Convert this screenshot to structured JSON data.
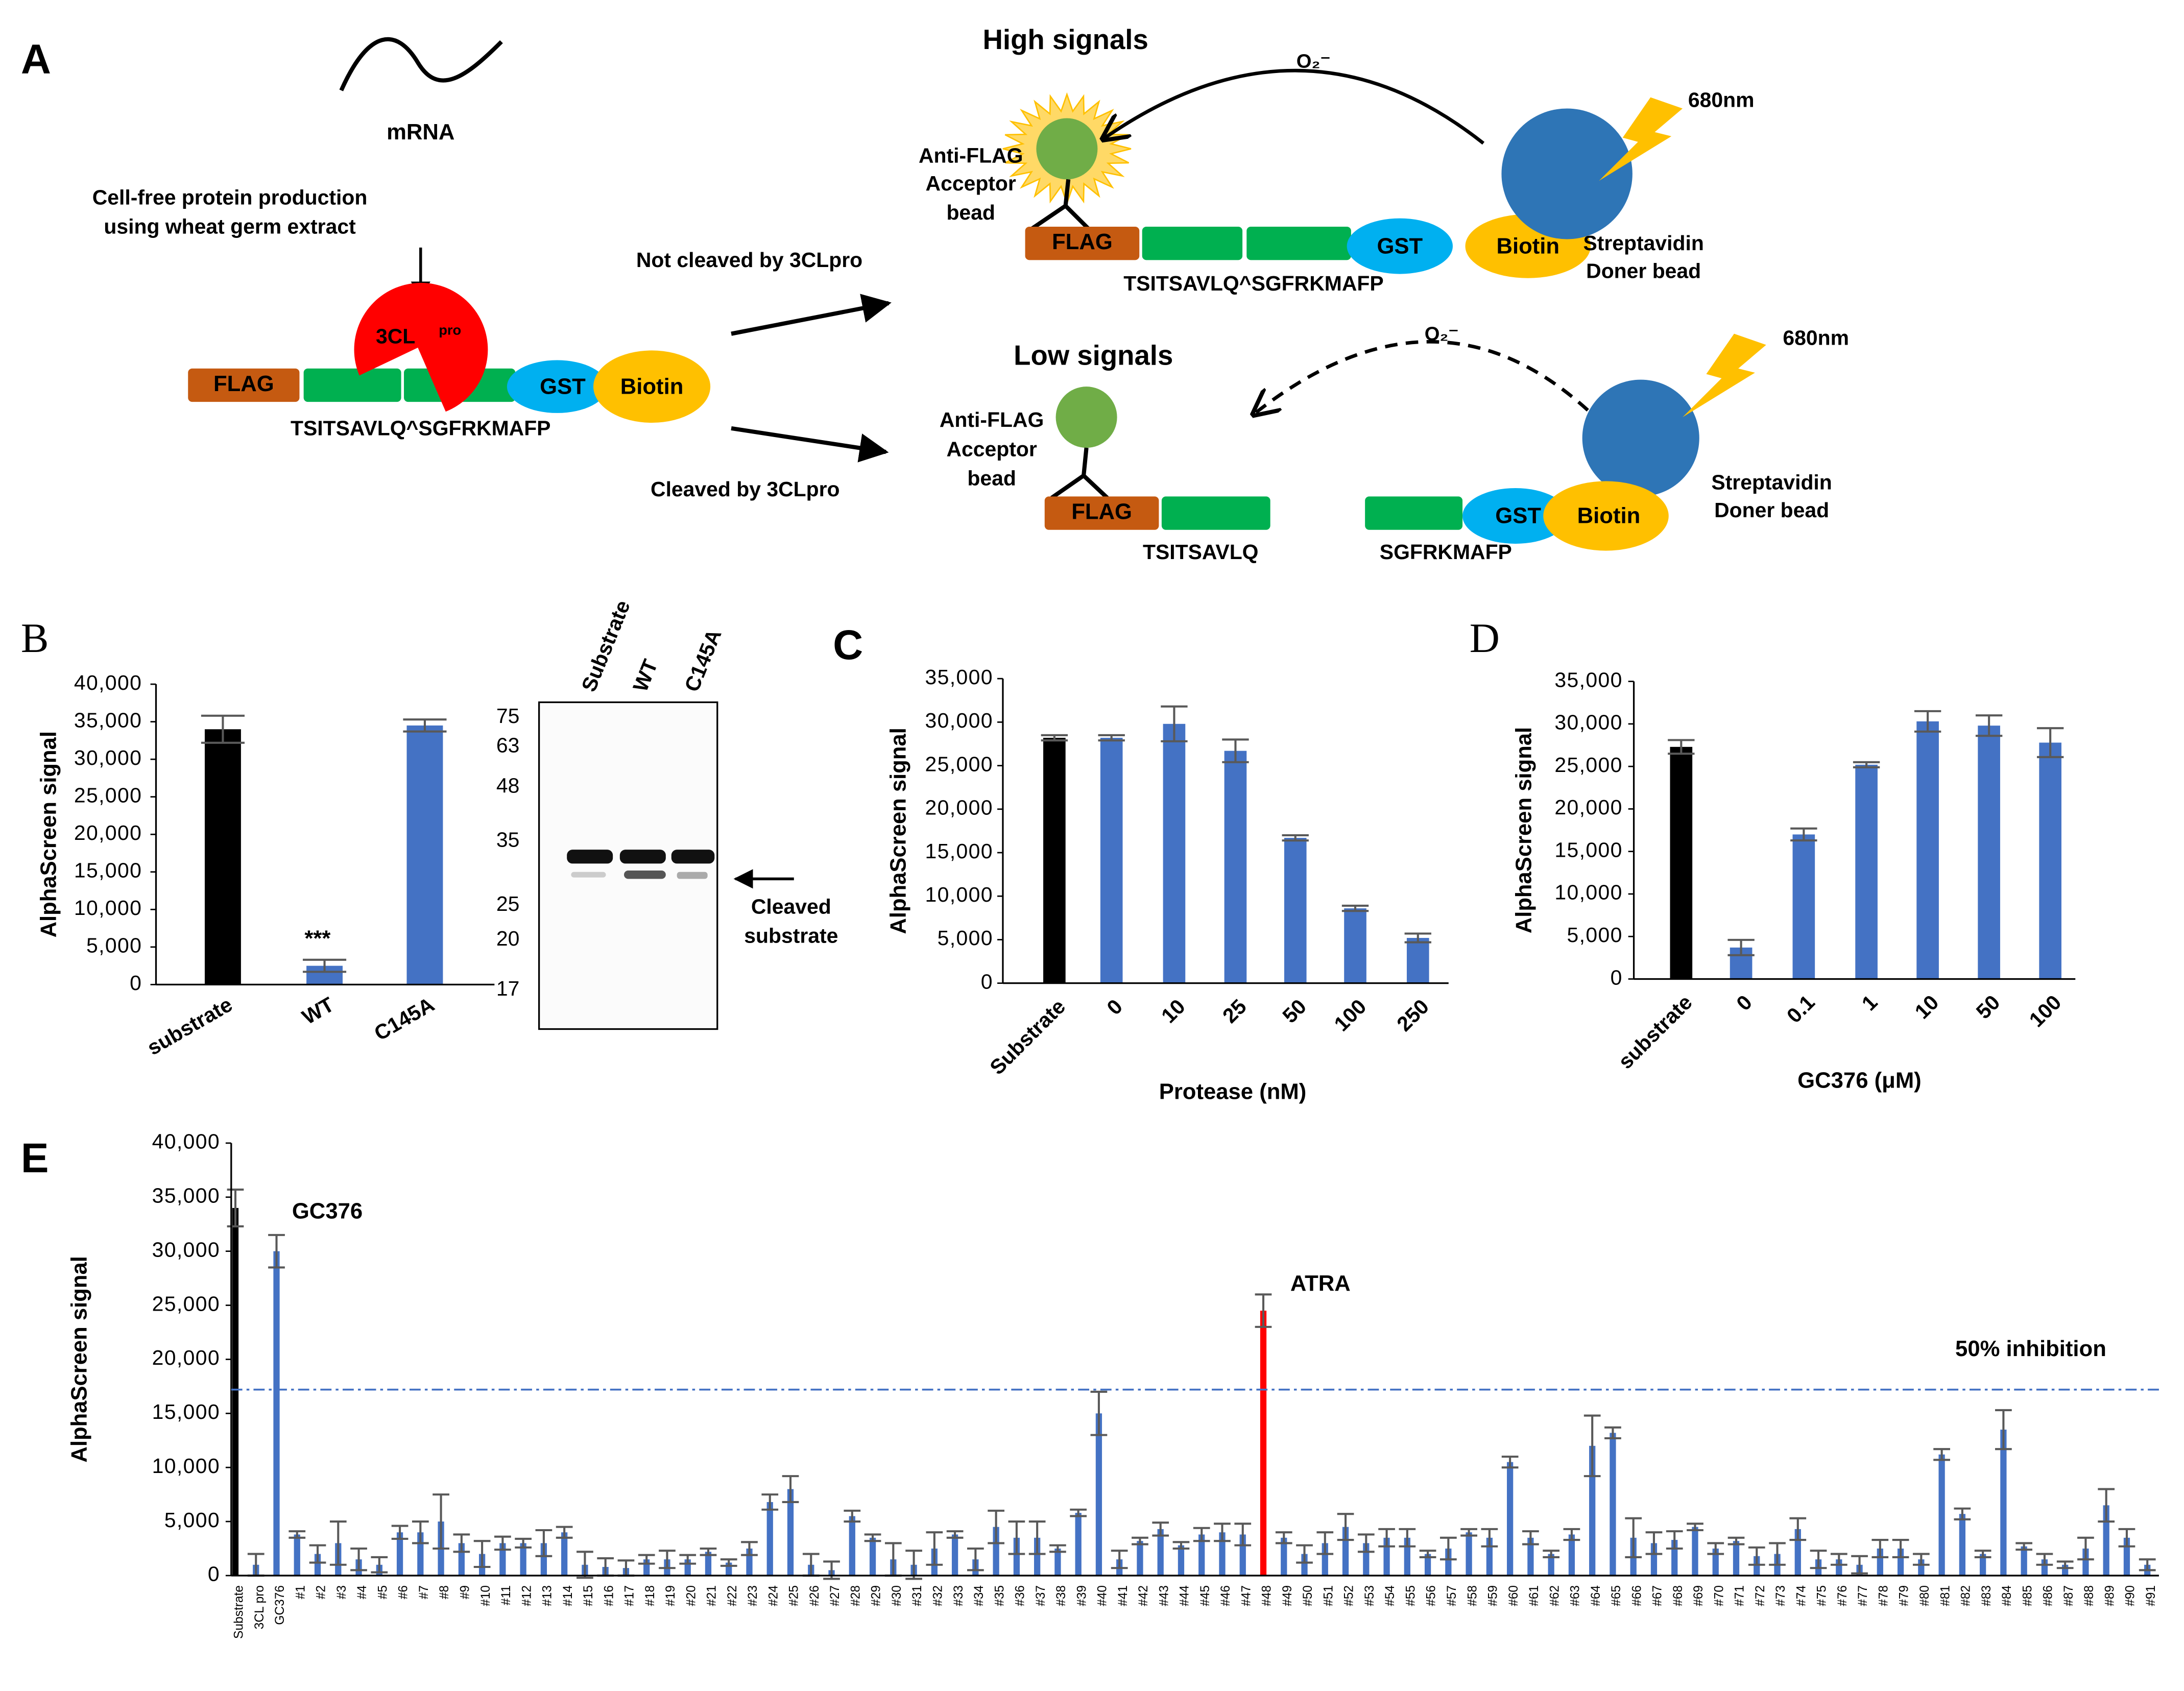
{
  "diagram": {
    "panel_label": "A",
    "mrna": "mRNA",
    "production": [
      "Cell-free protein production",
      "using wheat germ extract"
    ],
    "protease": "3CL",
    "protease_sup": "pro",
    "flag": "FLAG",
    "gst": "GST",
    "biotin": "Biotin",
    "full_sequence": "TSITSAVLQ^SGFRKMAFP",
    "not_cleaved": "Not cleaved by 3CLpro",
    "cleaved": "Cleaved by 3CLpro",
    "high": "High signals",
    "low": "Low signals",
    "oxygen": "O₂⁻",
    "wavelength": "680nm",
    "acceptor": [
      "Anti-FLAG",
      "Acceptor",
      "bead"
    ],
    "donor": [
      "Streptavidin",
      "Doner bead"
    ],
    "n_fragment": "TSITSAVLQ",
    "c_fragment": "SGFRKMAFP"
  },
  "blot": {
    "lanes": [
      "Substrate",
      "WT",
      "C145A"
    ],
    "markers": [
      75,
      63,
      48,
      35,
      25,
      20,
      17
    ],
    "arrow_label": [
      "Cleaved",
      "substrate"
    ]
  },
  "chart_data": [
    {
      "type": "bar",
      "panel_label": "B",
      "ylabel": "AlphaScreen signal",
      "categories": [
        "substrate",
        "WT",
        "C145A"
      ],
      "values": [
        34000,
        2500,
        34500
      ],
      "errors": [
        1800,
        800,
        800
      ],
      "colors": [
        "#000000",
        "#4472c4",
        "#4472c4"
      ],
      "ylim": [
        0,
        40000
      ],
      "yticks": [
        0,
        {
          "value": 5000,
          "label": "5,000"
        },
        {
          "value": 10000,
          "label": "10,000"
        },
        {
          "value": 15000,
          "label": "15,000"
        },
        {
          "value": 20000,
          "label": "20,000"
        },
        {
          "value": 25000,
          "label": "25,000"
        },
        {
          "value": 30000,
          "label": "30,000"
        },
        {
          "value": 35000,
          "label": "35,000"
        },
        {
          "value": 40000,
          "label": "40,000"
        }
      ],
      "annotations": [
        "***"
      ]
    },
    {
      "type": "bar",
      "panel_label": "C",
      "ylabel": "AlphaScreen signal",
      "xlabel": "Protease (nM)",
      "categories": [
        "Substrate",
        "0",
        "10",
        "25",
        "50",
        "100",
        "250"
      ],
      "values": [
        28200,
        28200,
        29800,
        26700,
        16700,
        8600,
        5200
      ],
      "errors": [
        300,
        300,
        2000,
        1300,
        300,
        300,
        500
      ],
      "colors": [
        "#000000",
        "#4472c4",
        "#4472c4",
        "#4472c4",
        "#4472c4",
        "#4472c4",
        "#4472c4"
      ],
      "ylim": [
        0,
        35000
      ],
      "yticks": [
        0,
        {
          "value": 5000,
          "label": "5,000"
        },
        {
          "value": 10000,
          "label": "10,000"
        },
        {
          "value": 15000,
          "label": "15,000"
        },
        {
          "value": 20000,
          "label": "20,000"
        },
        {
          "value": 25000,
          "label": "25,000"
        },
        {
          "value": 30000,
          "label": "30,000"
        },
        {
          "value": 35000,
          "label": "35,000"
        }
      ]
    },
    {
      "type": "bar",
      "panel_label": "D",
      "ylabel": "AlphaScreen signal",
      "xlabel": "GC376 (μM)",
      "categories": [
        "substrate",
        "0",
        "0.1",
        "1",
        "10",
        "50",
        "100"
      ],
      "values": [
        27300,
        3700,
        17000,
        25200,
        30300,
        29800,
        27800
      ],
      "errors": [
        800,
        900,
        700,
        300,
        1200,
        1200,
        1700
      ],
      "colors": [
        "#000000",
        "#4472c4",
        "#4472c4",
        "#4472c4",
        "#4472c4",
        "#4472c4",
        "#4472c4"
      ],
      "ylim": [
        0,
        35000
      ],
      "yticks": [
        0,
        {
          "value": 5000,
          "label": "5,000"
        },
        {
          "value": 10000,
          "label": "10,000"
        },
        {
          "value": 15000,
          "label": "15,000"
        },
        {
          "value": 20000,
          "label": "20,000"
        },
        {
          "value": 25000,
          "label": "25,000"
        },
        {
          "value": 30000,
          "label": "30,000"
        },
        {
          "value": 35000,
          "label": "35,000"
        }
      ]
    },
    {
      "type": "bar",
      "panel_label": "E",
      "ylabel": "AlphaScreen signal",
      "categories": [
        "Substrate",
        "3CL pro",
        "GC376",
        "#1",
        "#2",
        "#3",
        "#4",
        "#5",
        "#6",
        "#7",
        "#8",
        "#9",
        "#10",
        "#11",
        "#12",
        "#13",
        "#14",
        "#15",
        "#16",
        "#17",
        "#18",
        "#19",
        "#20",
        "#21",
        "#22",
        "#23",
        "#24",
        "#25",
        "#26",
        "#27",
        "#28",
        "#29",
        "#30",
        "#31",
        "#32",
        "#33",
        "#34",
        "#35",
        "#36",
        "#37",
        "#38",
        "#39",
        "#40",
        "#41",
        "#42",
        "#43",
        "#44",
        "#45",
        "#46",
        "#47",
        "#48",
        "#49",
        "#50",
        "#51",
        "#52",
        "#53",
        "#54",
        "#55",
        "#56",
        "#57",
        "#58",
        "#59",
        "#60",
        "#61",
        "#62",
        "#63",
        "#64",
        "#65",
        "#66",
        "#67",
        "#68",
        "#69",
        "#70",
        "#71",
        "#72",
        "#73",
        "#74",
        "#75",
        "#76",
        "#77",
        "#78",
        "#79",
        "#80",
        "#81",
        "#82",
        "#83",
        "#84",
        "#85",
        "#86",
        "#87",
        "#88",
        "#89",
        "#90",
        "#91"
      ],
      "values": [
        34000,
        1000,
        30000,
        3800,
        2000,
        3000,
        1500,
        1000,
        4000,
        4000,
        5000,
        3000,
        2000,
        3000,
        3000,
        3000,
        4000,
        1000,
        800,
        700,
        1500,
        1500,
        1500,
        2200,
        1200,
        2500,
        6800,
        8000,
        1000,
        500,
        5500,
        3500,
        1500,
        1000,
        2500,
        3800,
        1500,
        4500,
        3500,
        3500,
        2500,
        5800,
        15000,
        1500,
        3200,
        4300,
        2800,
        3800,
        4000,
        3800,
        24500,
        3500,
        2000,
        3000,
        4500,
        3000,
        3500,
        3500,
        2000,
        2500,
        4000,
        3500,
        10500,
        3500,
        2000,
        3800,
        12000,
        13200,
        3500,
        3000,
        3300,
        4500,
        2500,
        3200,
        1800,
        2000,
        4300,
        1500,
        1500,
        1000,
        2500,
        2500,
        1500,
        11200,
        5700,
        2000,
        13500,
        2700,
        1500,
        1000,
        2500,
        6500,
        3500,
        1000
      ],
      "errors": [
        1700,
        1000,
        1500,
        300,
        800,
        2000,
        1000,
        700,
        600,
        1000,
        2500,
        800,
        1200,
        600,
        400,
        1200,
        500,
        1200,
        800,
        700,
        400,
        800,
        400,
        300,
        300,
        600,
        700,
        1200,
        1000,
        800,
        500,
        300,
        1500,
        1300,
        1500,
        300,
        1000,
        1500,
        1500,
        1500,
        300,
        300,
        2000,
        800,
        300,
        600,
        300,
        600,
        800,
        1000,
        1500,
        500,
        800,
        1000,
        1200,
        800,
        800,
        800,
        300,
        1000,
        300,
        800,
        500,
        600,
        300,
        500,
        2800,
        500,
        1800,
        1000,
        800,
        300,
        500,
        300,
        800,
        1000,
        1000,
        800,
        500,
        800,
        800,
        800,
        500,
        500,
        500,
        300,
        1800,
        300,
        500,
        300,
        1000,
        1500,
        800,
        500
      ],
      "colors": [
        "#000000",
        "#4472c4",
        "#4472c4",
        "#4472c4",
        "#4472c4",
        "#4472c4",
        "#4472c4",
        "#4472c4",
        "#4472c4",
        "#4472c4",
        "#4472c4",
        "#4472c4",
        "#4472c4",
        "#4472c4",
        "#4472c4",
        "#4472c4",
        "#4472c4",
        "#4472c4",
        "#4472c4",
        "#4472c4",
        "#4472c4",
        "#4472c4",
        "#4472c4",
        "#4472c4",
        "#4472c4",
        "#4472c4",
        "#4472c4",
        "#4472c4",
        "#4472c4",
        "#4472c4",
        "#4472c4",
        "#4472c4",
        "#4472c4",
        "#4472c4",
        "#4472c4",
        "#4472c4",
        "#4472c4",
        "#4472c4",
        "#4472c4",
        "#4472c4",
        "#4472c4",
        "#4472c4",
        "#4472c4",
        "#4472c4",
        "#4472c4",
        "#4472c4",
        "#4472c4",
        "#4472c4",
        "#4472c4",
        "#4472c4",
        "#ff0000",
        "#4472c4",
        "#4472c4",
        "#4472c4",
        "#4472c4",
        "#4472c4",
        "#4472c4",
        "#4472c4",
        "#4472c4",
        "#4472c4",
        "#4472c4",
        "#4472c4",
        "#4472c4",
        "#4472c4",
        "#4472c4",
        "#4472c4",
        "#4472c4",
        "#4472c4",
        "#4472c4",
        "#4472c4",
        "#4472c4",
        "#4472c4",
        "#4472c4",
        "#4472c4",
        "#4472c4",
        "#4472c4",
        "#4472c4",
        "#4472c4",
        "#4472c4",
        "#4472c4",
        "#4472c4",
        "#4472c4",
        "#4472c4",
        "#4472c4",
        "#4472c4",
        "#4472c4",
        "#4472c4",
        "#4472c4",
        "#4472c4",
        "#4472c4",
        "#4472c4",
        "#4472c4",
        "#4472c4",
        "#4472c4"
      ],
      "ylim": [
        0,
        40000
      ],
      "yticks": [
        0,
        {
          "value": 5000,
          "label": "5,000"
        },
        {
          "value": 10000,
          "label": "10,000"
        },
        {
          "value": 15000,
          "label": "15,000"
        },
        {
          "value": 20000,
          "label": "20,000"
        },
        {
          "value": 25000,
          "label": "25,000"
        },
        {
          "value": 30000,
          "label": "30,000"
        },
        {
          "value": 35000,
          "label": "35,000"
        },
        {
          "value": 40000,
          "label": "40,000"
        }
      ],
      "reference_line": 17200,
      "reference_color": "#4472c4",
      "annotations": [
        "GC376",
        "ATRA",
        "50% inhibition"
      ]
    }
  ]
}
